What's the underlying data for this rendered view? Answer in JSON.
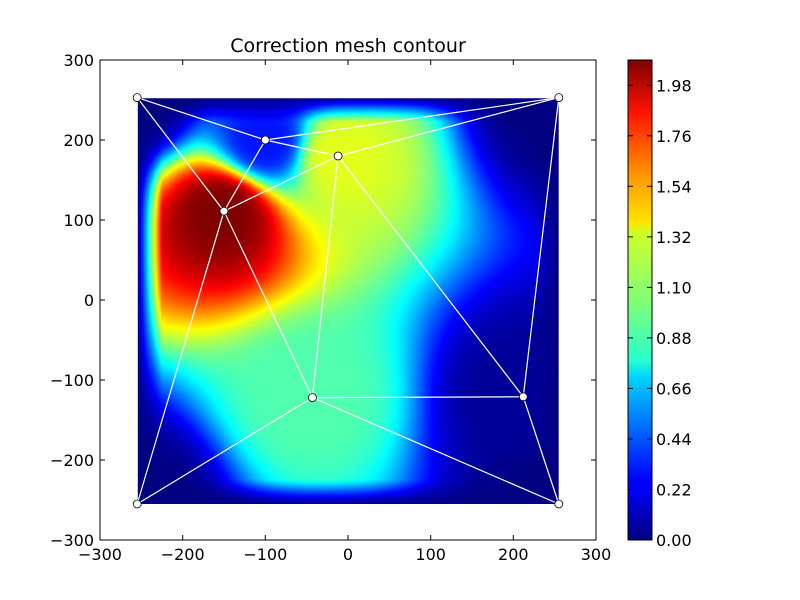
{
  "chart_data": {
    "type": "heatmap",
    "title": "Correction mesh contour",
    "xlabel": "",
    "ylabel": "",
    "xlim": [
      -300,
      300
    ],
    "ylim": [
      -300,
      300
    ],
    "x_ticks": [
      "−300",
      "−200",
      "−100",
      "0",
      "100",
      "200",
      "300"
    ],
    "x_tick_values": [
      -300,
      -200,
      -100,
      0,
      100,
      200,
      300
    ],
    "y_ticks": [
      "−300",
      "−200",
      "−100",
      "0",
      "100",
      "200",
      "300"
    ],
    "y_tick_values": [
      -300,
      -200,
      -100,
      0,
      100,
      200,
      300
    ],
    "colormap": "jet",
    "colorbar": {
      "range": [
        0.0,
        2.09
      ],
      "ticks": [
        "0.00",
        "0.22",
        "0.44",
        "0.66",
        "0.88",
        "1.10",
        "1.32",
        "1.54",
        "1.76",
        "1.98"
      ],
      "tick_values": [
        0.0,
        0.22,
        0.44,
        0.66,
        0.88,
        1.1,
        1.32,
        1.54,
        1.76,
        1.98
      ]
    },
    "mesh_nodes": [
      {
        "x": -255,
        "y": 253,
        "value": 0.0
      },
      {
        "x": 255,
        "y": 253,
        "value": 0.0
      },
      {
        "x": -100,
        "y": 200,
        "value": 0.3
      },
      {
        "x": -12,
        "y": 180,
        "value": 1.25
      },
      {
        "x": -150,
        "y": 111,
        "value": 2.09
      },
      {
        "x": -43,
        "y": -122,
        "value": 0.95
      },
      {
        "x": 212,
        "y": -121,
        "value": 0.05
      },
      {
        "x": -255,
        "y": -255,
        "value": 0.0
      },
      {
        "x": 255,
        "y": -255,
        "value": 0.0
      }
    ],
    "mesh_edges": [
      [
        0,
        2
      ],
      [
        0,
        4
      ],
      [
        0,
        1
      ],
      [
        0,
        7
      ],
      [
        2,
        1
      ],
      [
        2,
        4
      ],
      [
        2,
        3
      ],
      [
        3,
        1
      ],
      [
        3,
        4
      ],
      [
        3,
        5
      ],
      [
        3,
        6
      ],
      [
        4,
        5
      ],
      [
        4,
        7
      ],
      [
        5,
        7
      ],
      [
        5,
        8
      ],
      [
        5,
        6
      ],
      [
        6,
        1
      ],
      [
        6,
        8
      ]
    ],
    "grid": false,
    "legend": "colorbar-right",
    "colors": {
      "mesh_line": "#ffffff",
      "node_fill": "#ffffff",
      "node_stroke": "#000000",
      "axes_background": "#ffffff",
      "frame": "#000000"
    }
  }
}
